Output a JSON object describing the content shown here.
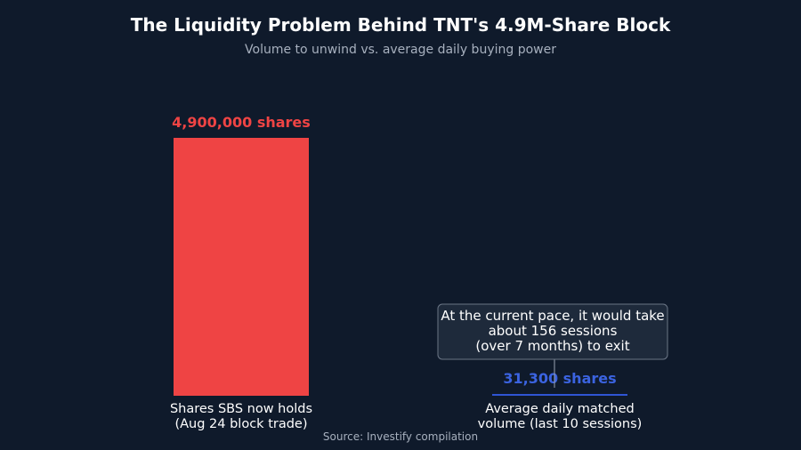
{
  "chart_data": {
    "type": "bar",
    "title": "The Liquidity Problem Behind TNT's 4.9M-Share Block",
    "subtitle": "Volume to unwind vs. average daily buying power",
    "source": "Source: Investify compilation",
    "categories": [
      [
        "Shares SBS now holds",
        "(Aug 24 block trade)"
      ],
      [
        "Average daily matched",
        "volume (last 10 sessions)"
      ]
    ],
    "values": [
      4900000,
      31300
    ],
    "value_labels": [
      "4,900,000 shares",
      "31,300 shares"
    ],
    "colors": [
      "#ef4444",
      "#2f55d4"
    ],
    "ylim": [
      0,
      4900000
    ],
    "grid": false,
    "annotation": {
      "target": 1,
      "lines": [
        "At the current pace, it would take",
        "about 156 sessions",
        "(over 7 months) to exit"
      ]
    }
  }
}
